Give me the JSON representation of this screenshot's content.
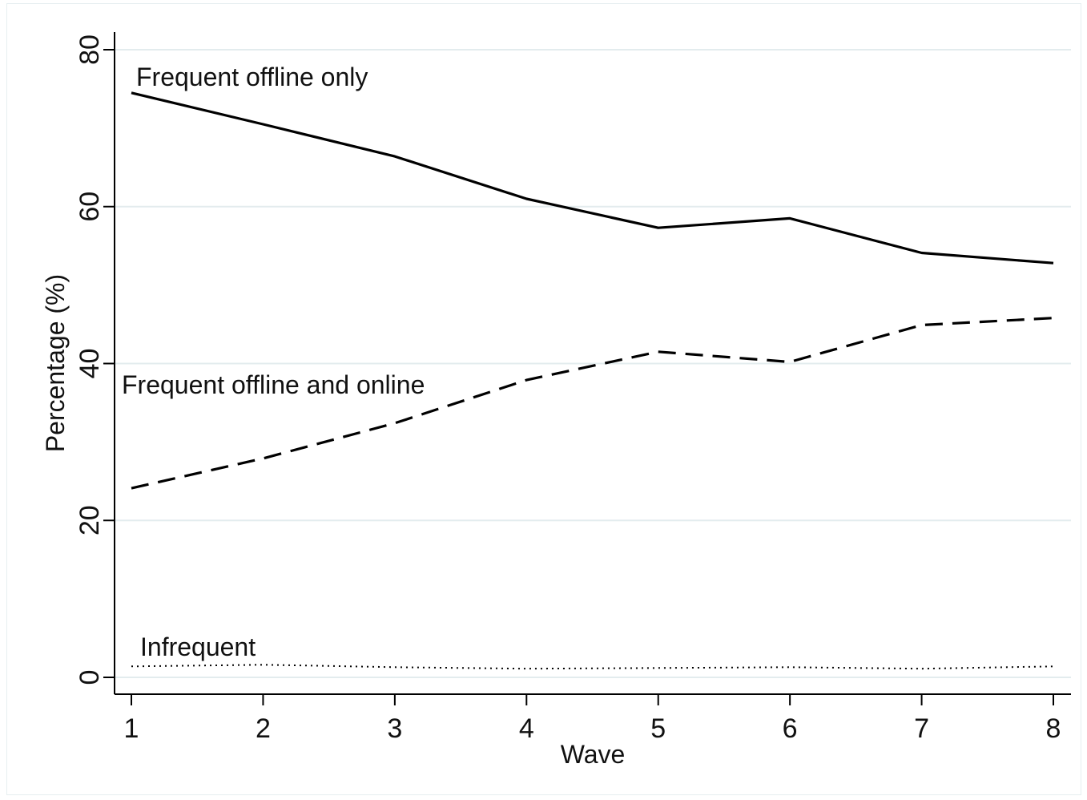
{
  "chart_data": {
    "type": "line",
    "title": "",
    "xlabel": "Wave",
    "ylabel": "Percentage (%)",
    "x": [
      1,
      2,
      3,
      4,
      5,
      6,
      7,
      8
    ],
    "xlim": [
      1,
      8
    ],
    "ylim": [
      0,
      80
    ],
    "x_ticks": [
      "1",
      "2",
      "3",
      "4",
      "5",
      "6",
      "7",
      "8"
    ],
    "y_ticks": [
      "0",
      "20",
      "40",
      "60",
      "80"
    ],
    "grid": "horizontal",
    "legend": "none (direct labels)",
    "series": [
      {
        "name": "Frequent offline only",
        "values": [
          74.5,
          70.5,
          66.4,
          61.0,
          57.3,
          58.5,
          54.1,
          52.8
        ],
        "line_style": "solid",
        "color": "#000000"
      },
      {
        "name": "Frequent offline and online",
        "values": [
          24.1,
          27.9,
          32.4,
          37.9,
          41.5,
          40.2,
          44.9,
          45.8
        ],
        "line_style": "dashed",
        "color": "#000000"
      },
      {
        "name": "Infrequent",
        "values": [
          1.4,
          1.6,
          1.3,
          1.1,
          1.2,
          1.3,
          1.1,
          1.4
        ],
        "line_style": "dotted",
        "color": "#000000"
      }
    ],
    "colors": {
      "gridline": "#e3ecee",
      "axis": "#000000",
      "frame": "#e6eef0"
    }
  }
}
